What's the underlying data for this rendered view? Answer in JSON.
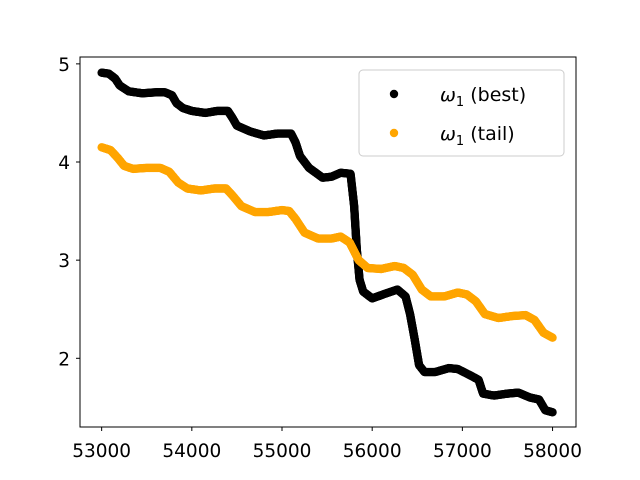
{
  "chart_data": {
    "type": "scatter",
    "xlim": [
      52760,
      58260
    ],
    "ylim": [
      1.3,
      5.07
    ],
    "x_ticks": [
      53000,
      54000,
      55000,
      56000,
      57000,
      58000
    ],
    "x_tick_labels": [
      "53000",
      "54000",
      "55000",
      "56000",
      "57000",
      "58000"
    ],
    "y_ticks": [
      2,
      3,
      4,
      5
    ],
    "y_tick_labels": [
      "2",
      "3",
      "4",
      "5"
    ],
    "grid": false,
    "legend_position": "top-right",
    "series": [
      {
        "name": "ω1 (best)",
        "legend_main": "ω",
        "legend_sub": "1",
        "legend_rest": " (best)",
        "color": "#000000",
        "points": [
          [
            53000,
            4.91
          ],
          [
            53080,
            4.9
          ],
          [
            53150,
            4.85
          ],
          [
            53200,
            4.78
          ],
          [
            53300,
            4.72
          ],
          [
            53450,
            4.7
          ],
          [
            53600,
            4.71
          ],
          [
            53700,
            4.71
          ],
          [
            53780,
            4.68
          ],
          [
            53830,
            4.6
          ],
          [
            53900,
            4.55
          ],
          [
            54000,
            4.52
          ],
          [
            54150,
            4.5
          ],
          [
            54280,
            4.52
          ],
          [
            54400,
            4.52
          ],
          [
            54450,
            4.45
          ],
          [
            54500,
            4.37
          ],
          [
            54650,
            4.31
          ],
          [
            54800,
            4.27
          ],
          [
            54950,
            4.29
          ],
          [
            55100,
            4.29
          ],
          [
            55150,
            4.2
          ],
          [
            55200,
            4.06
          ],
          [
            55300,
            3.94
          ],
          [
            55450,
            3.84
          ],
          [
            55550,
            3.85
          ],
          [
            55650,
            3.89
          ],
          [
            55760,
            3.88
          ],
          [
            55800,
            3.55
          ],
          [
            55830,
            3.1
          ],
          [
            55860,
            2.8
          ],
          [
            55900,
            2.68
          ],
          [
            56000,
            2.61
          ],
          [
            56150,
            2.66
          ],
          [
            56280,
            2.7
          ],
          [
            56370,
            2.63
          ],
          [
            56420,
            2.45
          ],
          [
            56470,
            2.2
          ],
          [
            56520,
            1.93
          ],
          [
            56580,
            1.86
          ],
          [
            56700,
            1.86
          ],
          [
            56850,
            1.9
          ],
          [
            56950,
            1.89
          ],
          [
            57100,
            1.82
          ],
          [
            57180,
            1.78
          ],
          [
            57230,
            1.64
          ],
          [
            57350,
            1.62
          ],
          [
            57500,
            1.64
          ],
          [
            57620,
            1.65
          ],
          [
            57750,
            1.6
          ],
          [
            57850,
            1.58
          ],
          [
            57920,
            1.47
          ],
          [
            58000,
            1.45
          ]
        ]
      },
      {
        "name": "ω1 (tail)",
        "legend_main": "ω",
        "legend_sub": "1",
        "legend_rest": " (tail)",
        "color": "#FFA500",
        "points": [
          [
            53000,
            4.15
          ],
          [
            53100,
            4.12
          ],
          [
            53180,
            4.04
          ],
          [
            53250,
            3.96
          ],
          [
            53350,
            3.93
          ],
          [
            53500,
            3.94
          ],
          [
            53650,
            3.94
          ],
          [
            53750,
            3.9
          ],
          [
            53850,
            3.79
          ],
          [
            53950,
            3.73
          ],
          [
            54100,
            3.71
          ],
          [
            54250,
            3.73
          ],
          [
            54380,
            3.73
          ],
          [
            54450,
            3.66
          ],
          [
            54550,
            3.55
          ],
          [
            54700,
            3.49
          ],
          [
            54850,
            3.49
          ],
          [
            55000,
            3.51
          ],
          [
            55080,
            3.5
          ],
          [
            55150,
            3.42
          ],
          [
            55250,
            3.28
          ],
          [
            55400,
            3.22
          ],
          [
            55550,
            3.22
          ],
          [
            55650,
            3.24
          ],
          [
            55750,
            3.18
          ],
          [
            55850,
            3.0
          ],
          [
            55950,
            2.92
          ],
          [
            56100,
            2.91
          ],
          [
            56250,
            2.94
          ],
          [
            56350,
            2.92
          ],
          [
            56450,
            2.85
          ],
          [
            56550,
            2.7
          ],
          [
            56650,
            2.63
          ],
          [
            56800,
            2.63
          ],
          [
            56950,
            2.67
          ],
          [
            57050,
            2.65
          ],
          [
            57150,
            2.58
          ],
          [
            57250,
            2.45
          ],
          [
            57400,
            2.41
          ],
          [
            57550,
            2.43
          ],
          [
            57700,
            2.44
          ],
          [
            57800,
            2.39
          ],
          [
            57900,
            2.26
          ],
          [
            58000,
            2.21
          ]
        ]
      }
    ]
  }
}
